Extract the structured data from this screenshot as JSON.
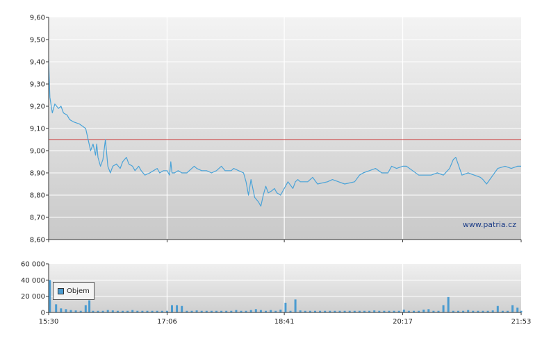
{
  "chart_data": [
    {
      "type": "line",
      "title": "",
      "xlabel": "",
      "ylabel": "",
      "ylim": [
        8.6,
        9.6
      ],
      "y_ticks": [
        "9,60",
        "9,50",
        "9,40",
        "9,30",
        "9,20",
        "9,10",
        "9,00",
        "8,90",
        "8,80",
        "8,70",
        "8,60"
      ],
      "reference_line": 9.05,
      "reference_color": "#cc3333",
      "line_color": "#4aa3d8",
      "grid": true,
      "watermark": "www.patria.cz",
      "series": [
        {
          "x": [
            "15:30",
            "15:31",
            "15:33",
            "15:35",
            "15:38",
            "15:40",
            "15:42",
            "15:45",
            "15:47",
            "15:50",
            "15:55",
            "16:00",
            "16:04",
            "16:06",
            "16:08",
            "16:09",
            "16:10",
            "16:12",
            "16:14",
            "16:16",
            "16:18",
            "16:20",
            "16:22",
            "16:25",
            "16:28",
            "16:30",
            "16:33",
            "16:35",
            "16:38",
            "16:40",
            "16:43",
            "16:45",
            "16:48",
            "16:52",
            "16:55",
            "16:58",
            "17:00",
            "17:03",
            "17:06",
            "17:08",
            "17:09",
            "17:10",
            "17:12",
            "17:15",
            "17:18",
            "17:22",
            "17:26",
            "17:28",
            "17:30",
            "17:34",
            "17:38",
            "17:42",
            "17:46",
            "17:50",
            "17:53",
            "17:56",
            "17:58",
            "18:00",
            "18:04",
            "18:08",
            "18:10",
            "18:12",
            "18:14",
            "18:17",
            "18:20",
            "18:22",
            "18:24",
            "18:26",
            "18:28",
            "18:31",
            "18:33",
            "18:35",
            "18:38",
            "18:44",
            "18:48",
            "18:50",
            "18:52",
            "18:54",
            "19:00",
            "19:04",
            "19:08",
            "19:16",
            "19:20",
            "19:25",
            "19:30",
            "19:38",
            "19:42",
            "19:45",
            "19:50",
            "19:55",
            "20:00",
            "20:05",
            "20:08",
            "20:12",
            "20:17",
            "20:20",
            "20:25",
            "20:30",
            "20:32",
            "20:40",
            "20:45",
            "20:50",
            "20:55",
            "20:58",
            "21:00",
            "21:05",
            "21:10",
            "21:15",
            "21:20",
            "21:22",
            "21:25",
            "21:34",
            "21:40",
            "21:45",
            "21:50",
            "21:53"
          ],
          "values": [
            9.41,
            9.24,
            9.17,
            9.21,
            9.19,
            9.2,
            9.17,
            9.16,
            9.14,
            9.13,
            9.12,
            9.1,
            9.0,
            9.03,
            8.98,
            9.03,
            8.97,
            8.93,
            8.96,
            9.05,
            8.93,
            8.9,
            8.93,
            8.94,
            8.92,
            8.95,
            8.97,
            8.94,
            8.93,
            8.91,
            8.93,
            8.91,
            8.89,
            8.9,
            8.91,
            8.92,
            8.9,
            8.91,
            8.91,
            8.89,
            8.95,
            8.9,
            8.9,
            8.91,
            8.9,
            8.9,
            8.92,
            8.93,
            8.92,
            8.91,
            8.91,
            8.9,
            8.91,
            8.93,
            8.91,
            8.91,
            8.91,
            8.92,
            8.91,
            8.9,
            8.86,
            8.8,
            8.87,
            8.79,
            8.77,
            8.75,
            8.8,
            8.84,
            8.81,
            8.82,
            8.83,
            8.81,
            8.8,
            8.86,
            8.83,
            8.86,
            8.87,
            8.86,
            8.86,
            8.88,
            8.85,
            8.86,
            8.87,
            8.86,
            8.85,
            8.86,
            8.89,
            8.9,
            8.91,
            8.92,
            8.9,
            8.9,
            8.93,
            8.92,
            8.93,
            8.93,
            8.91,
            8.89,
            8.89,
            8.89,
            8.9,
            8.89,
            8.92,
            8.96,
            8.97,
            8.89,
            8.9,
            8.89,
            8.88,
            8.87,
            8.85,
            8.92,
            8.93,
            8.92,
            8.93,
            8.93
          ]
        }
      ]
    },
    {
      "type": "bar",
      "title": "",
      "xlabel": "",
      "ylabel": "",
      "ylim": [
        0,
        60000
      ],
      "y_ticks": [
        "60 000",
        "40 000",
        "20 000",
        "0"
      ],
      "x_ticks": [
        "15:30",
        "17:06",
        "18:41",
        "20:17",
        "21:53"
      ],
      "grid": true,
      "legend_position": "top-left",
      "bar_color": "#4a9bd0",
      "series": [
        {
          "name": "Objem",
          "x": [
            "15:31",
            "15:36",
            "15:40",
            "15:44",
            "15:48",
            "15:52",
            "15:56",
            "16:00",
            "16:03",
            "16:06",
            "16:10",
            "16:14",
            "16:18",
            "16:22",
            "16:26",
            "16:30",
            "16:34",
            "16:38",
            "16:42",
            "16:46",
            "16:50",
            "16:54",
            "16:58",
            "17:02",
            "17:06",
            "17:10",
            "17:14",
            "17:18",
            "17:22",
            "17:26",
            "17:30",
            "17:34",
            "17:38",
            "17:42",
            "17:46",
            "17:50",
            "17:54",
            "17:58",
            "18:02",
            "18:06",
            "18:10",
            "18:14",
            "18:18",
            "18:22",
            "18:26",
            "18:30",
            "18:34",
            "18:38",
            "18:42",
            "18:46",
            "18:50",
            "18:54",
            "18:58",
            "19:02",
            "19:06",
            "19:10",
            "19:14",
            "19:18",
            "19:22",
            "19:26",
            "19:30",
            "19:34",
            "19:38",
            "19:42",
            "19:46",
            "19:50",
            "19:54",
            "19:58",
            "20:02",
            "20:06",
            "20:10",
            "20:14",
            "20:18",
            "20:22",
            "20:26",
            "20:30",
            "20:34",
            "20:38",
            "20:42",
            "20:46",
            "20:50",
            "20:54",
            "20:58",
            "21:02",
            "21:06",
            "21:10",
            "21:14",
            "21:18",
            "21:22",
            "21:26",
            "21:30",
            "21:34",
            "21:38",
            "21:42",
            "21:46",
            "21:50",
            "21:53"
          ],
          "values": [
            40000,
            10000,
            5000,
            4000,
            3000,
            2500,
            2000,
            9000,
            15000,
            2000,
            2000,
            2000,
            3000,
            2500,
            2000,
            2000,
            2000,
            3000,
            2000,
            2000,
            2000,
            2000,
            2000,
            2000,
            2000,
            9000,
            9000,
            8000,
            2000,
            2000,
            2500,
            2000,
            2000,
            2000,
            2000,
            2000,
            2000,
            2000,
            3000,
            2000,
            2000,
            3000,
            4000,
            3000,
            2000,
            3000,
            2000,
            3500,
            12000,
            2000,
            16000,
            2500,
            2000,
            2000,
            2000,
            2000,
            2000,
            2000,
            2000,
            2000,
            2000,
            2000,
            2000,
            2000,
            2000,
            2000,
            2500,
            2000,
            2000,
            2000,
            2000,
            2000,
            3500,
            2000,
            2000,
            2000,
            3500,
            4000,
            2000,
            2000,
            9000,
            19000,
            2000,
            2000,
            2000,
            3000,
            2000,
            2000,
            2000,
            2000,
            2500,
            8000,
            2000,
            2000,
            9000,
            6000,
            2000
          ]
        }
      ]
    }
  ]
}
